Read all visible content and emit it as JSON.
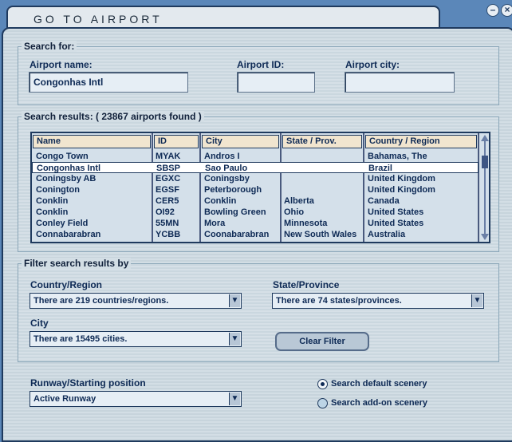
{
  "window": {
    "title": "GO TO AIRPORT",
    "minimize_icon": "minimize-icon",
    "close_icon": "close-icon"
  },
  "search": {
    "group_label": "Search for:",
    "name_label": "Airport name:",
    "name_value": "Congonhas Intl",
    "id_label": "Airport ID:",
    "id_value": "",
    "city_label": "Airport city:",
    "city_value": ""
  },
  "results": {
    "group_label": "Search results: ( 23867 airports found )",
    "columns": [
      "Name",
      "ID",
      "City",
      "State / Prov.",
      "Country / Region"
    ],
    "rows": [
      [
        "Congo Town",
        "MYAK",
        "Andros I",
        "",
        "Bahamas, The"
      ],
      [
        "Congonhas Intl",
        "SBSP",
        "Sao Paulo",
        "",
        "Brazil"
      ],
      [
        "Coningsby AB",
        "EGXC",
        "Coningsby",
        "",
        "United Kingdom"
      ],
      [
        "Conington",
        "EGSF",
        "Peterborough",
        "",
        "United Kingdom"
      ],
      [
        "Conklin",
        "CER5",
        "Conklin",
        "Alberta",
        "Canada"
      ],
      [
        "Conklin",
        "OI92",
        "Bowling Green",
        "Ohio",
        "United States"
      ],
      [
        "Conley Field",
        "55MN",
        "Mora",
        "Minnesota",
        "United States"
      ],
      [
        "Connabarabran",
        "YCBB",
        "Coonabarabran",
        "New South Wales",
        "Australia"
      ]
    ],
    "selected_row": 1
  },
  "filter": {
    "group_label": "Filter search results by",
    "country_label": "Country/Region",
    "country_value": "There are 219 countries/regions.",
    "state_label": "State/Province",
    "state_value": "There are 74 states/provinces.",
    "city_label": "City",
    "city_value": "There are 15495 cities.",
    "clear_label": "Clear Filter"
  },
  "runway": {
    "label": "Runway/Starting position",
    "value": "Active Runway"
  },
  "scenery": {
    "default_label": "Search default scenery",
    "addon_label": "Search add-on scenery",
    "selected": "default"
  }
}
